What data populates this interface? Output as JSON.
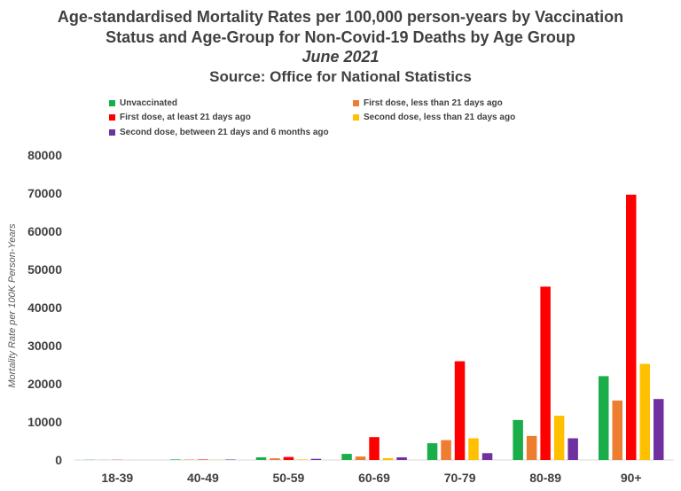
{
  "chart_data": {
    "type": "bar",
    "title": [
      "Age-standardised Mortality Rates per 100,000 person-years by Vaccination",
      "Status and Age-Group for Non-Covid-19 Deaths by Age Group",
      "June 2021",
      "Source: Office for National Statistics"
    ],
    "xlabel": "",
    "ylabel": "Mortality Rate per 100K Person-Years",
    "ylim": [
      0,
      80000
    ],
    "yticks": [
      "0",
      "10000",
      "20000",
      "30000",
      "40000",
      "50000",
      "60000",
      "70000",
      "80000"
    ],
    "categories": [
      "18-39",
      "40-49",
      "50-59",
      "60-69",
      "70-79",
      "80-89",
      "90+"
    ],
    "series": [
      {
        "name": "Unvaccinated",
        "color": "#1aae4a",
        "values": [
          50,
          150,
          700,
          1600,
          4400,
          10500,
          22000
        ]
      },
      {
        "name": "First dose, less than 21 days ago",
        "color": "#ed7d31",
        "values": [
          30,
          100,
          450,
          900,
          5200,
          6300,
          15600
        ]
      },
      {
        "name": "First dose, at least 21 days ago",
        "color": "#ff0000",
        "values": [
          40,
          120,
          800,
          6000,
          25900,
          45500,
          69600
        ]
      },
      {
        "name": "Second dose, less than 21 days ago",
        "color": "#ffc000",
        "values": [
          20,
          50,
          150,
          500,
          5700,
          11600,
          25200
        ]
      },
      {
        "name": "Second dose, between 21 days and 6 months ago",
        "color": "#7030a0",
        "values": [
          10,
          120,
          300,
          700,
          1800,
          5700,
          16000
        ]
      }
    ],
    "grid": false,
    "legend": "top"
  }
}
